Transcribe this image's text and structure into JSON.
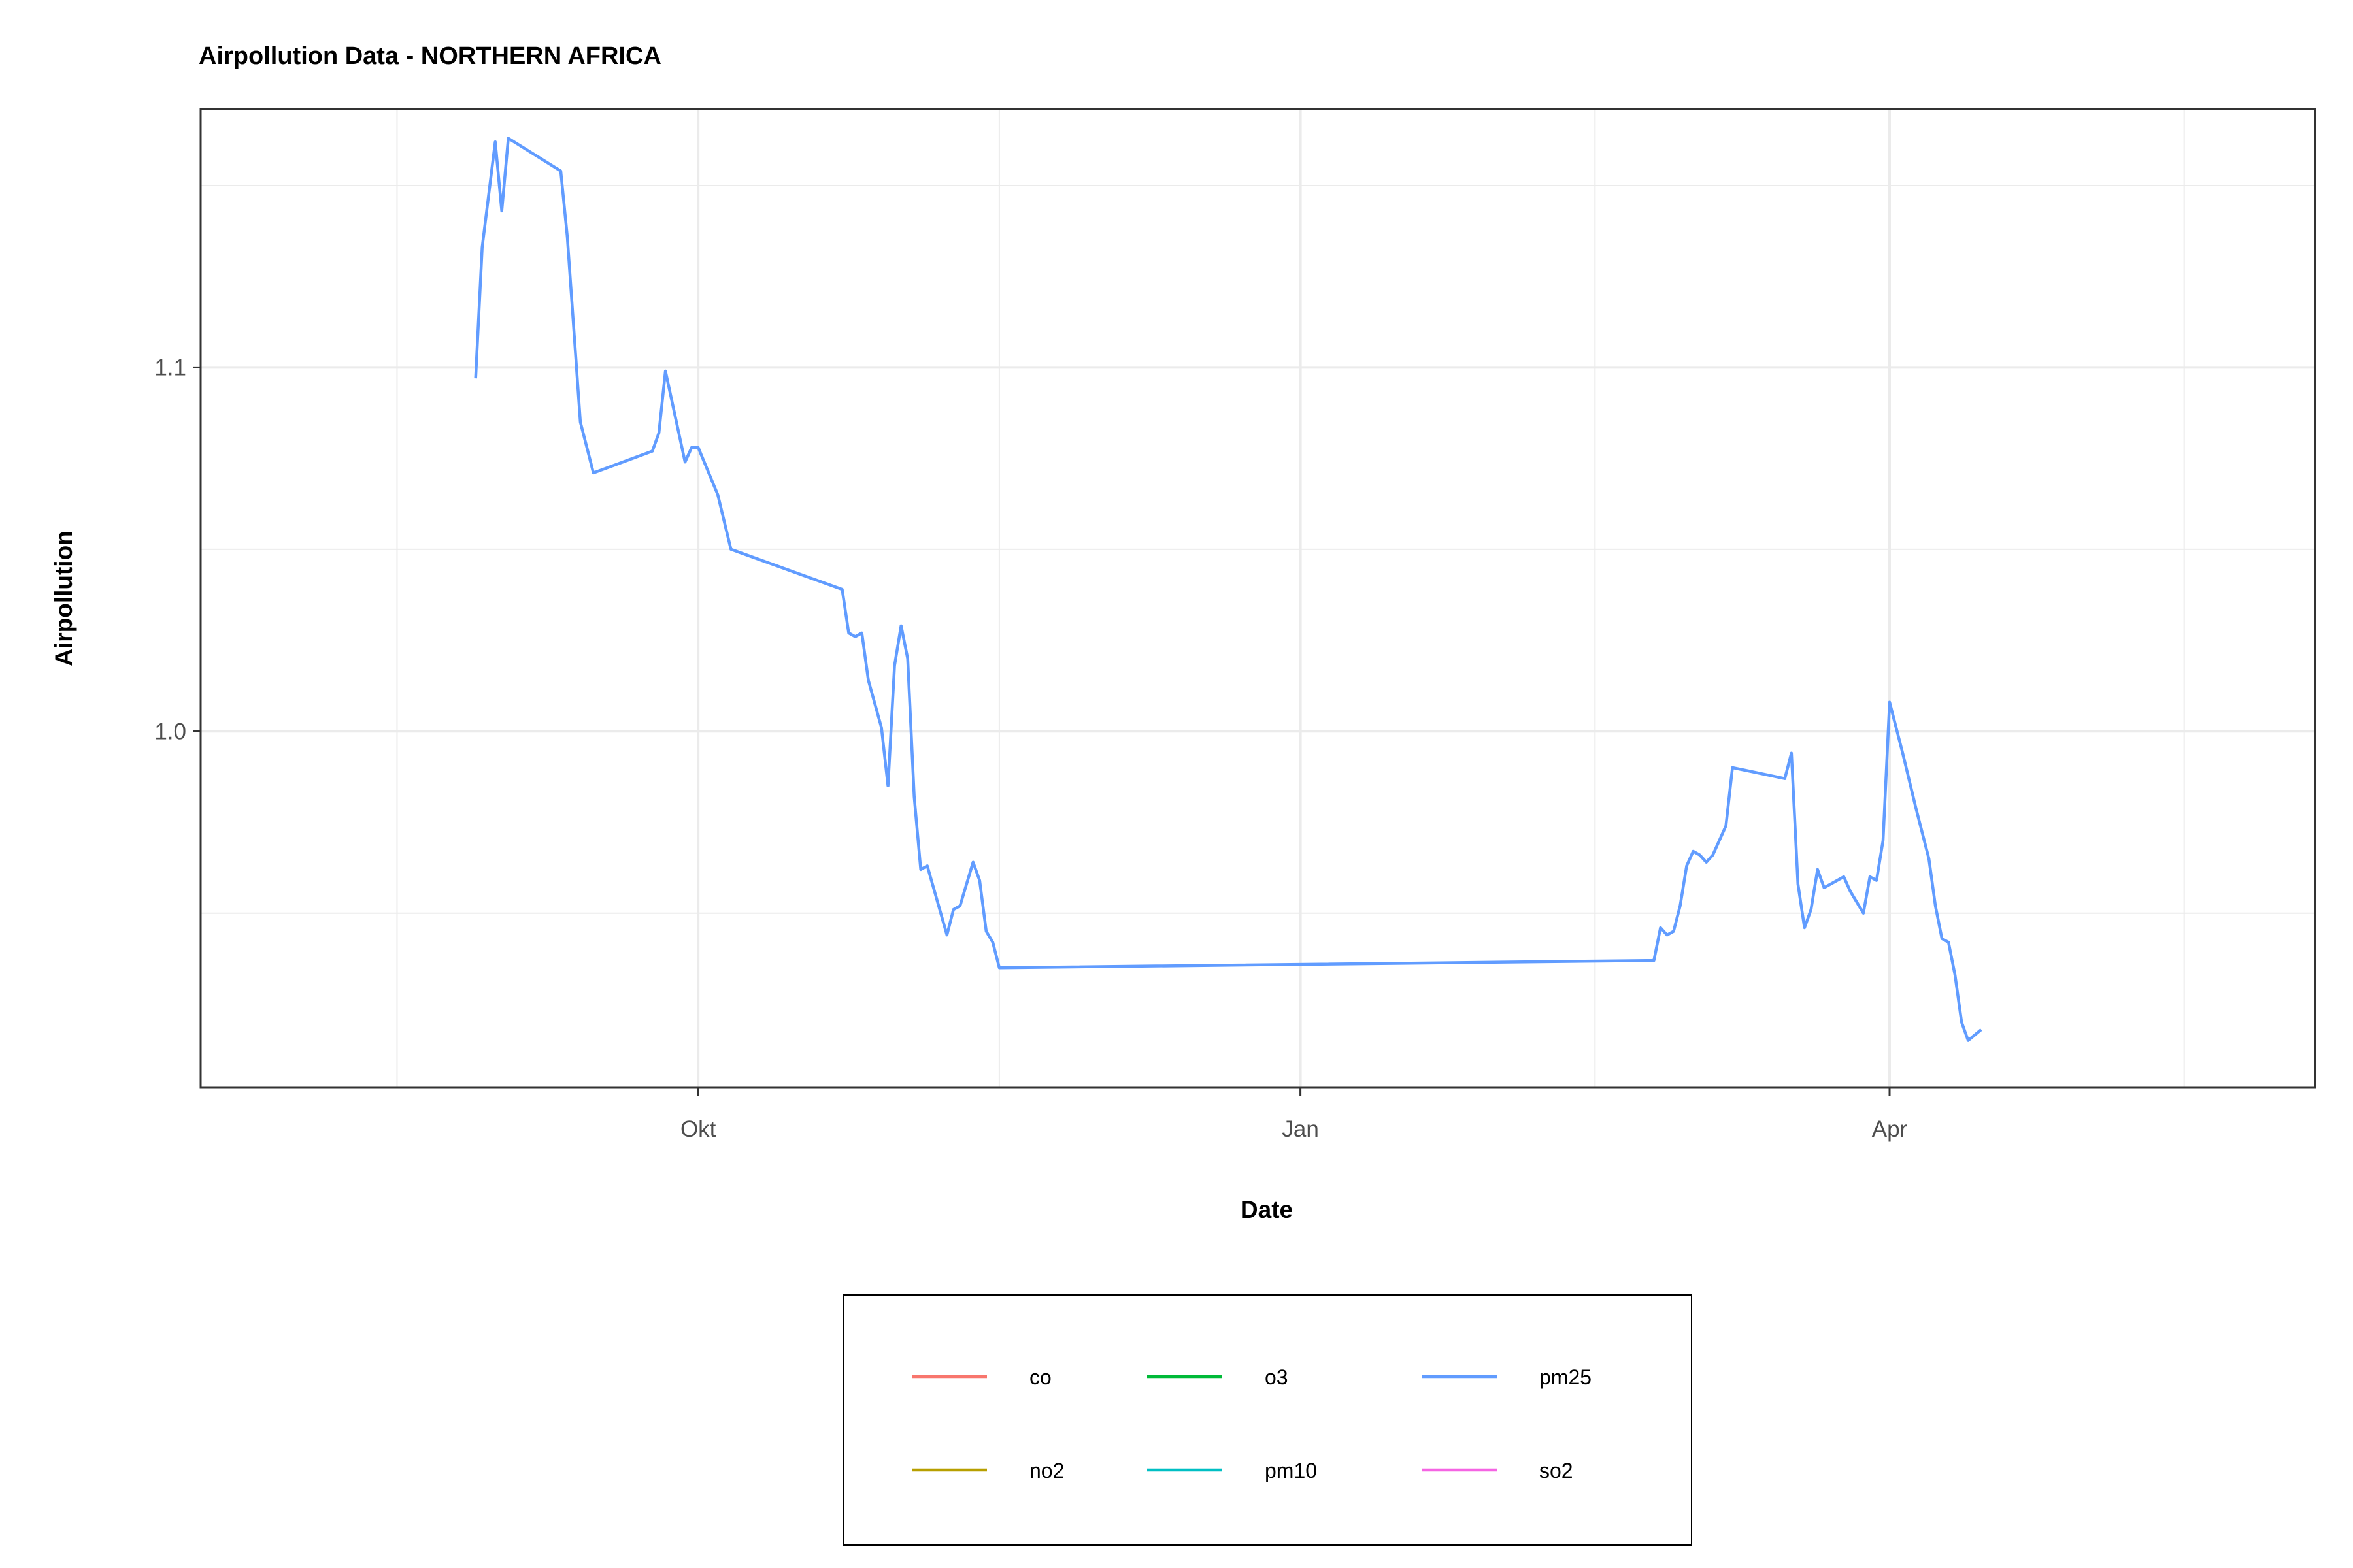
{
  "chart_data": {
    "type": "line",
    "title": "Airpollution Data - NORTHERN AFRICA",
    "xlabel": "Date",
    "ylabel": "Airpollution",
    "x_tick_labels": [
      "Okt",
      "Jan",
      "Apr"
    ],
    "y_tick_labels": [
      "1.0",
      "1.1"
    ],
    "x_ticks": [
      0,
      92,
      182
    ],
    "y_ticks": [
      1.0,
      1.1
    ],
    "x_axis_note": "days since Oct 1",
    "xlim": [
      -76,
      247
    ],
    "ylim": [
      0.902,
      1.171
    ],
    "grid": true,
    "legend_position": "bottom",
    "legend": [
      {
        "name": "co",
        "color": "#F8766D"
      },
      {
        "name": "no2",
        "color": "#B79F00"
      },
      {
        "name": "o3",
        "color": "#00BA38"
      },
      {
        "name": "pm10",
        "color": "#00BFC4"
      },
      {
        "name": "pm25",
        "color": "#619CFF"
      },
      {
        "name": "so2",
        "color": "#F564E3"
      }
    ],
    "series": [
      {
        "name": "pm25",
        "color": "#619CFF",
        "points": [
          [
            -34,
            1.097
          ],
          [
            -33,
            1.133
          ],
          [
            -31,
            1.162
          ],
          [
            -30,
            1.143
          ],
          [
            -29,
            1.163
          ],
          [
            -21,
            1.154
          ],
          [
            -20,
            1.136
          ],
          [
            -18,
            1.085
          ],
          [
            -16,
            1.071
          ],
          [
            -7,
            1.077
          ],
          [
            -6,
            1.082
          ],
          [
            -5,
            1.099
          ],
          [
            -2,
            1.074
          ],
          [
            -1,
            1.078
          ],
          [
            0,
            1.078
          ],
          [
            3,
            1.065
          ],
          [
            5,
            1.05
          ],
          [
            22,
            1.039
          ],
          [
            23,
            1.027
          ],
          [
            24,
            1.026
          ],
          [
            25,
            1.027
          ],
          [
            26,
            1.014
          ],
          [
            28,
            1.001
          ],
          [
            29,
            0.985
          ],
          [
            30,
            1.018
          ],
          [
            31,
            1.029
          ],
          [
            32,
            1.02
          ],
          [
            33,
            0.982
          ],
          [
            34,
            0.962
          ],
          [
            35,
            0.963
          ],
          [
            38,
            0.944
          ],
          [
            39,
            0.951
          ],
          [
            40,
            0.952
          ],
          [
            42,
            0.964
          ],
          [
            43,
            0.959
          ],
          [
            44,
            0.945
          ],
          [
            45,
            0.942
          ],
          [
            46,
            0.935
          ],
          [
            146,
            0.937
          ],
          [
            147,
            0.946
          ],
          [
            148,
            0.944
          ],
          [
            149,
            0.945
          ],
          [
            150,
            0.952
          ],
          [
            151,
            0.963
          ],
          [
            152,
            0.967
          ],
          [
            153,
            0.966
          ],
          [
            154,
            0.964
          ],
          [
            155,
            0.966
          ],
          [
            157,
            0.974
          ],
          [
            158,
            0.99
          ],
          [
            166,
            0.987
          ],
          [
            167,
            0.994
          ],
          [
            168,
            0.958
          ],
          [
            169,
            0.946
          ],
          [
            170,
            0.951
          ],
          [
            171,
            0.962
          ],
          [
            172,
            0.957
          ],
          [
            175,
            0.96
          ],
          [
            176,
            0.956
          ],
          [
            178,
            0.95
          ],
          [
            179,
            0.96
          ],
          [
            180,
            0.959
          ],
          [
            181,
            0.97
          ],
          [
            182,
            1.008
          ],
          [
            184,
            0.994
          ],
          [
            186,
            0.979
          ],
          [
            188,
            0.965
          ],
          [
            189,
            0.952
          ],
          [
            190,
            0.943
          ],
          [
            191,
            0.942
          ],
          [
            192,
            0.933
          ],
          [
            193,
            0.92
          ],
          [
            194,
            0.915
          ],
          [
            196,
            0.918
          ]
        ]
      }
    ]
  }
}
